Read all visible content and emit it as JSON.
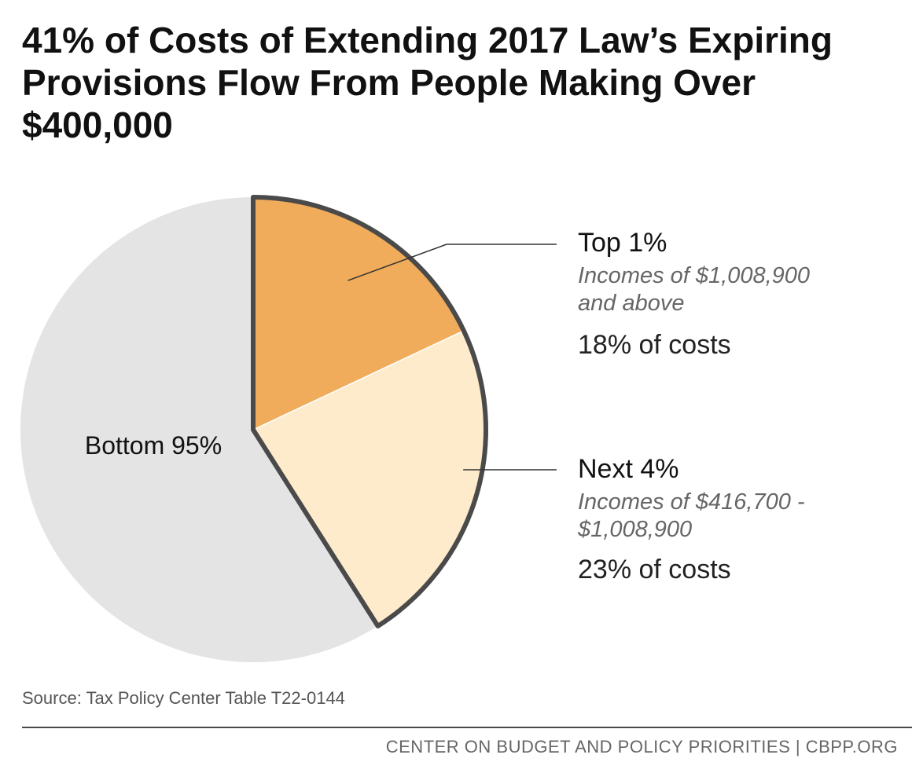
{
  "title": "41% of Costs of Extending 2017 Law’s Expiring Provisions Flow From People Making Over $400,000",
  "chart_data": {
    "type": "pie",
    "title": "41% of Costs of Extending 2017 Law’s Expiring Provisions Flow From People Making Over $400,000",
    "slices": [
      {
        "name": "Top 1%",
        "value": 18,
        "description": "Incomes of $1,008,900 and above",
        "share_label": "18% of costs",
        "color": "#f0ab5b",
        "highlighted": true
      },
      {
        "name": "Next 4%",
        "value": 23,
        "description": "Incomes of $416,700 - $1,008,900",
        "share_label": "23% of costs",
        "color": "#fdebcb",
        "highlighted": true
      },
      {
        "name": "Bottom 95%",
        "value": 59,
        "color": "#e4e4e4",
        "highlighted": false
      }
    ],
    "highlight_outline_color": "#4a4a4a"
  },
  "source": "Source: Tax Policy Center Table T22-0144",
  "footer": "CENTER ON BUDGET AND POLICY PRIORITIES | CBPP.ORG"
}
